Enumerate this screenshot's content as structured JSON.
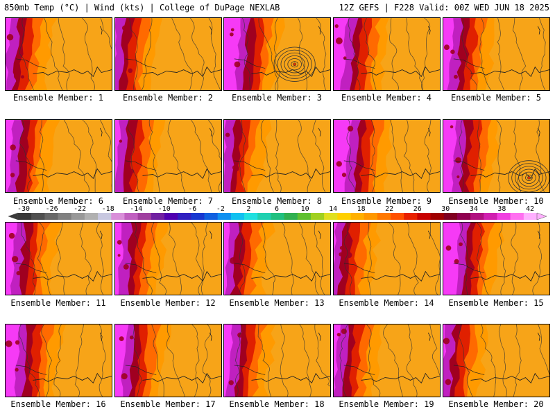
{
  "header": {
    "left_title": "850mb Temp (°C) | Wind (kts) | College of DuPage NEXLAB",
    "right_title": "12Z GEFS | F228 Valid: 00Z WED JUN 18 2025"
  },
  "members": [
    {
      "label": "Ensemble Member: 1"
    },
    {
      "label": "Ensemble Member: 2"
    },
    {
      "label": "Ensemble Member: 3"
    },
    {
      "label": "Ensemble Member: 4"
    },
    {
      "label": "Ensemble Member: 5"
    },
    {
      "label": "Ensemble Member: 6"
    },
    {
      "label": "Ensemble Member: 7"
    },
    {
      "label": "Ensemble Member: 8"
    },
    {
      "label": "Ensemble Member: 9"
    },
    {
      "label": "Ensemble Member: 10"
    },
    {
      "label": "Ensemble Member: 11"
    },
    {
      "label": "Ensemble Member: 12"
    },
    {
      "label": "Ensemble Member: 13"
    },
    {
      "label": "Ensemble Member: 14"
    },
    {
      "label": "Ensemble Member: 15"
    },
    {
      "label": "Ensemble Member: 16"
    },
    {
      "label": "Ensemble Member: 17"
    },
    {
      "label": "Ensemble Member: 18"
    },
    {
      "label": "Ensemble Member: 19"
    },
    {
      "label": "Ensemble Member: 20"
    }
  ],
  "colorbar": {
    "ticks": [
      "-30",
      "-26",
      "-22",
      "-18",
      "-14",
      "-10",
      "-6",
      "-2",
      "2",
      "6",
      "10",
      "14",
      "18",
      "22",
      "26",
      "30",
      "34",
      "38",
      "42"
    ],
    "colors": [
      "#3a3a3a",
      "#505050",
      "#686868",
      "#808080",
      "#989898",
      "#b0b0b0",
      "#c8c8e0",
      "#d98fd9",
      "#c060c0",
      "#a040a0",
      "#7020a0",
      "#5000b0",
      "#3020c0",
      "#1838d0",
      "#1060e0",
      "#1090f0",
      "#10c0f0",
      "#20e0e0",
      "#20d0b0",
      "#20c080",
      "#30b050",
      "#60c030",
      "#a0d020",
      "#e0e020",
      "#ffd000",
      "#ffb000",
      "#ff9800",
      "#ff7800",
      "#ff5000",
      "#e82000",
      "#c80000",
      "#a00000",
      "#800020",
      "#900050",
      "#b01080",
      "#d020b0",
      "#f040e0",
      "#ff70f0",
      "#ffb0ff"
    ]
  },
  "colors": {
    "warm": "#f7a418",
    "orange": "#ff9a00",
    "hot": "#ff6a00",
    "red": "#e02000",
    "darkred": "#a00020",
    "magenta": "#c020c0",
    "pink": "#ff40ff"
  }
}
